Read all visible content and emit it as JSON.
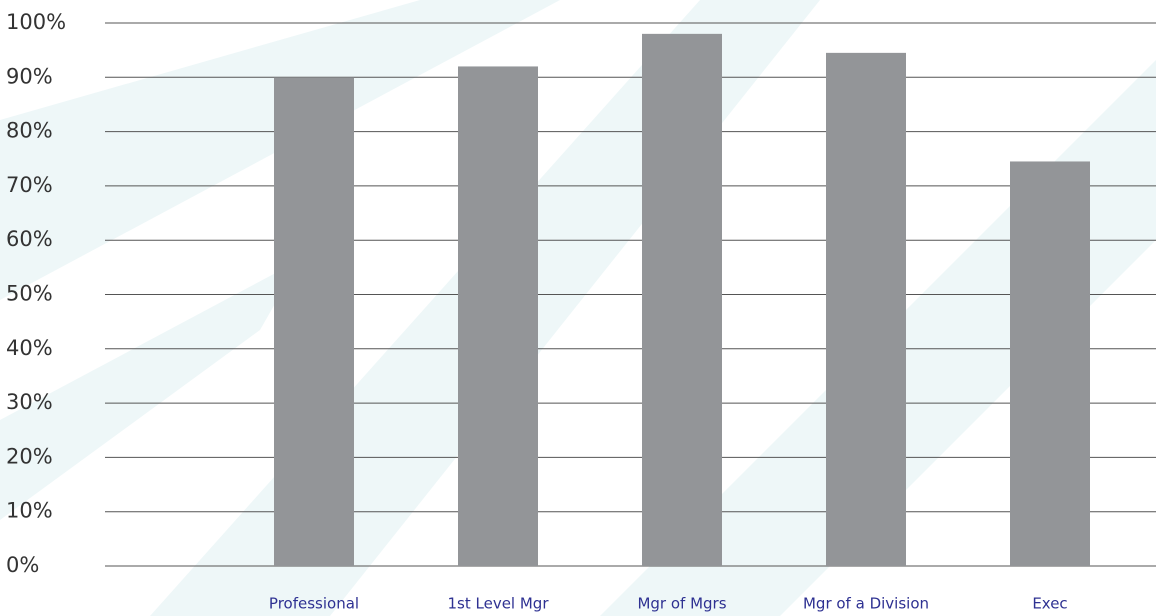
{
  "chart_data": {
    "type": "bar",
    "categories": [
      "Professional",
      "1st Level Mgr",
      "Mgr of Mgrs",
      "Mgr of a Division",
      "Exec"
    ],
    "values": [
      90,
      92,
      98,
      94.5,
      74.5
    ],
    "color": "#939598",
    "ylim": [
      0,
      100
    ],
    "yticks": [
      {
        "value": 0,
        "label": "0%"
      },
      {
        "value": 10,
        "label": "10%"
      },
      {
        "value": 20,
        "label": "20%"
      },
      {
        "value": 30,
        "label": "30%"
      },
      {
        "value": 40,
        "label": "40%"
      },
      {
        "value": 50,
        "label": "50%"
      },
      {
        "value": 60,
        "label": "60%"
      },
      {
        "value": 70,
        "label": "70%"
      },
      {
        "value": 80,
        "label": "80%"
      },
      {
        "value": 90,
        "label": "90%"
      },
      {
        "value": 100,
        "label": "100%"
      }
    ],
    "grid": true
  }
}
